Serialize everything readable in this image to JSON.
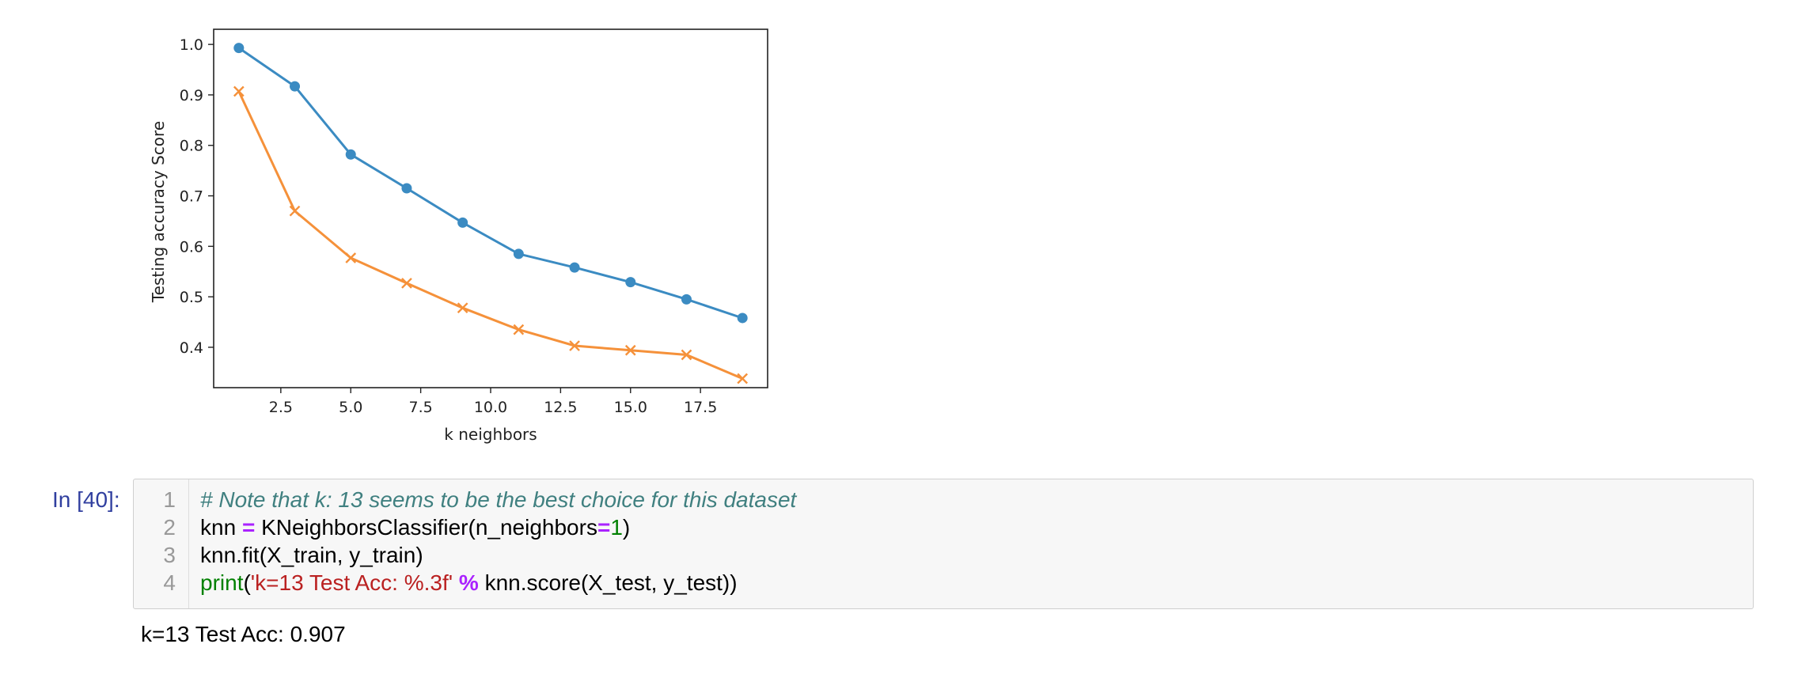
{
  "chart_data": {
    "type": "line",
    "xlabel": "k neighbors",
    "ylabel": "Testing accuracy Score",
    "xlim": [
      0.1,
      19.9
    ],
    "ylim": [
      0.32,
      1.03
    ],
    "x_ticks": [
      2.5,
      5.0,
      7.5,
      10.0,
      12.5,
      15.0,
      17.5
    ],
    "x_tick_labels": [
      "2.5",
      "5.0",
      "7.5",
      "10.0",
      "12.5",
      "15.0",
      "17.5"
    ],
    "y_ticks": [
      0.4,
      0.5,
      0.6,
      0.7,
      0.8,
      0.9,
      1.0
    ],
    "y_tick_labels": [
      "0.4",
      "0.5",
      "0.6",
      "0.7",
      "0.8",
      "0.9",
      "1.0"
    ],
    "grid": false,
    "x": [
      1,
      3,
      5,
      7,
      9,
      11,
      13,
      15,
      17,
      19
    ],
    "series": [
      {
        "marker": "circle",
        "color": "#3b8bc2",
        "values": [
          0.993,
          0.917,
          0.782,
          0.715,
          0.647,
          0.585,
          0.558,
          0.529,
          0.495,
          0.458
        ]
      },
      {
        "marker": "x",
        "color": "#f5913a",
        "values": [
          0.907,
          0.67,
          0.577,
          0.527,
          0.478,
          0.435,
          0.403,
          0.394,
          0.385,
          0.338
        ]
      }
    ]
  },
  "cell": {
    "prompt": "In [40]:",
    "line_numbers": [
      "1",
      "2",
      "3",
      "4"
    ],
    "lines": [
      [
        {
          "t": "# Note that k: 13 seems to be the best choice for this dataset",
          "c": "tok-comment"
        }
      ],
      [
        {
          "t": "knn ",
          "c": ""
        },
        {
          "t": "=",
          "c": "tok-op"
        },
        {
          "t": " KNeighborsClassifier(n_neighbors",
          "c": ""
        },
        {
          "t": "=",
          "c": "tok-op"
        },
        {
          "t": "1",
          "c": "tok-num"
        },
        {
          "t": ")",
          "c": ""
        }
      ],
      [
        {
          "t": "knn.fit(X_train, y_train)",
          "c": ""
        }
      ],
      [
        {
          "t": "print",
          "c": "tok-builtin"
        },
        {
          "t": "(",
          "c": ""
        },
        {
          "t": "'k=13 Test Acc: %.3f'",
          "c": "tok-str"
        },
        {
          "t": " ",
          "c": ""
        },
        {
          "t": "%",
          "c": "tok-op"
        },
        {
          "t": " knn.score(X_test, y_test))",
          "c": ""
        }
      ]
    ]
  },
  "output": {
    "text": "k=13 Test Acc: 0.907"
  }
}
